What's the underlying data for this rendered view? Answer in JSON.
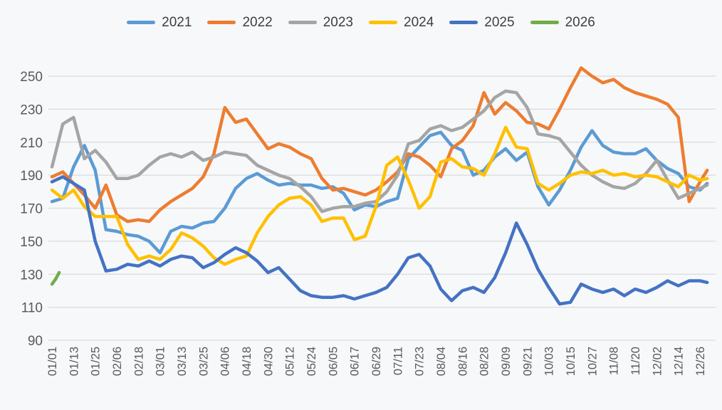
{
  "chart": {
    "background": "#f7f8f9",
    "gridline_color": "#d8dadc",
    "axis_text_color": "#595959",
    "legend_text_color": "#3f3f3f"
  },
  "chart_data": {
    "type": "line",
    "title": "",
    "xlabel": "",
    "ylabel": "",
    "legend_position": "top",
    "grid": "horizontal",
    "ylim": [
      90,
      250
    ],
    "y_ticks": [
      90,
      110,
      130,
      150,
      170,
      190,
      210,
      230,
      250
    ],
    "x_tick_labels": [
      "01/01",
      "01/13",
      "01/25",
      "02/06",
      "02/18",
      "03/01",
      "03/13",
      "03/25",
      "04/06",
      "04/18",
      "04/30",
      "05/12",
      "05/24",
      "06/05",
      "06/17",
      "06/29",
      "07/11",
      "07/23",
      "08/04",
      "08/16",
      "08/28",
      "09/09",
      "09/21",
      "10/03",
      "10/15",
      "10/27",
      "11/08",
      "11/20",
      "12/02",
      "12/14",
      "12/26"
    ],
    "x_tick_days": [
      0,
      12,
      24,
      36,
      48,
      60,
      72,
      84,
      96,
      108,
      120,
      132,
      144,
      156,
      168,
      180,
      192,
      204,
      216,
      228,
      240,
      252,
      264,
      276,
      288,
      300,
      312,
      324,
      336,
      348,
      360
    ],
    "sample_days": [
      0,
      6,
      12,
      18,
      24,
      30,
      36,
      42,
      48,
      54,
      60,
      66,
      72,
      78,
      84,
      90,
      96,
      102,
      108,
      114,
      120,
      126,
      132,
      138,
      144,
      150,
      156,
      162,
      168,
      174,
      180,
      186,
      192,
      198,
      204,
      210,
      216,
      222,
      228,
      234,
      240,
      246,
      252,
      258,
      264,
      270,
      276,
      282,
      288,
      294,
      300,
      306,
      312,
      318,
      324,
      330,
      336,
      342,
      348,
      354,
      360,
      364
    ],
    "series": [
      {
        "name": "2021",
        "color": "#5B9BD5",
        "values": [
          174,
          176,
          195,
          208,
          193,
          157,
          156,
          154,
          153,
          150,
          143,
          156,
          159,
          158,
          161,
          162,
          170,
          182,
          188,
          191,
          187,
          184,
          185,
          184,
          184,
          182,
          183,
          179,
          169,
          172,
          171,
          174,
          176,
          200,
          207,
          214,
          216,
          208,
          205,
          190,
          193,
          201,
          206,
          199,
          204,
          183,
          172,
          181,
          193,
          207,
          217,
          208,
          204,
          203,
          203,
          206,
          199,
          194,
          191,
          183,
          181,
          185
        ]
      },
      {
        "name": "2022",
        "color": "#ED7D31",
        "values": [
          189,
          192,
          185,
          178,
          170,
          184,
          166,
          162,
          163,
          162,
          169,
          174,
          178,
          182,
          189,
          203,
          231,
          222,
          224,
          215,
          206,
          209,
          207,
          203,
          200,
          188,
          181,
          182,
          180,
          178,
          181,
          186,
          192,
          203,
          201,
          196,
          189,
          206,
          211,
          220,
          240,
          227,
          234,
          229,
          222,
          221,
          218,
          230,
          243,
          255,
          250,
          246,
          248,
          243,
          240,
          238,
          236,
          233,
          225,
          174,
          186,
          193
        ]
      },
      {
        "name": "2023",
        "color": "#A5A5A5",
        "values": [
          195,
          221,
          225,
          200,
          205,
          198,
          188,
          188,
          190,
          196,
          201,
          203,
          201,
          204,
          199,
          201,
          204,
          203,
          202,
          196,
          193,
          190,
          188,
          183,
          177,
          168,
          170,
          171,
          171,
          173,
          174,
          180,
          190,
          209,
          211,
          218,
          220,
          217,
          219,
          224,
          229,
          237,
          241,
          240,
          231,
          215,
          214,
          212,
          204,
          196,
          190,
          186,
          183,
          182,
          185,
          191,
          199,
          187,
          176,
          179,
          182,
          184
        ]
      },
      {
        "name": "2024",
        "color": "#FFC000",
        "values": [
          181,
          176,
          181,
          171,
          165,
          165,
          165,
          148,
          139,
          141,
          139,
          145,
          155,
          152,
          147,
          140,
          136,
          139,
          141,
          155,
          165,
          172,
          176,
          177,
          172,
          162,
          164,
          164,
          151,
          153,
          171,
          196,
          201,
          187,
          170,
          177,
          198,
          200,
          195,
          194,
          190,
          203,
          219,
          207,
          206,
          185,
          181,
          185,
          190,
          192,
          191,
          193,
          190,
          191,
          189,
          190,
          189,
          186,
          183,
          190,
          187,
          188
        ]
      },
      {
        "name": "2025",
        "color": "#4472C4",
        "values": [
          186,
          189,
          185,
          181,
          150,
          132,
          133,
          136,
          135,
          138,
          135,
          139,
          141,
          140,
          134,
          137,
          142,
          146,
          143,
          138,
          131,
          134,
          127,
          120,
          117,
          116,
          116,
          117,
          115,
          117,
          119,
          122,
          130,
          140,
          142,
          135,
          121,
          114,
          120,
          122,
          119,
          128,
          143,
          161,
          148,
          133,
          122,
          112,
          113,
          124,
          121,
          119,
          121,
          117,
          121,
          119,
          122,
          126,
          123,
          126,
          126,
          125
        ]
      },
      {
        "name": "2026",
        "color": "#70AD47",
        "x": [
          0,
          2,
          4
        ],
        "values": [
          124,
          127,
          131
        ]
      }
    ]
  }
}
